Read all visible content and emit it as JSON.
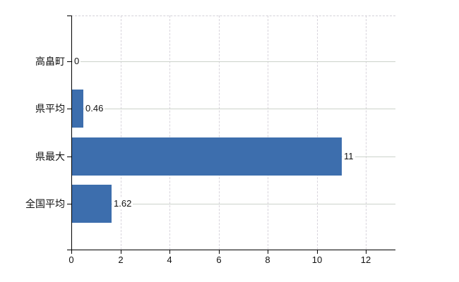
{
  "colors": {
    "bar": "#3d6ead",
    "axis": "#000000",
    "vertical_gridline": "#d8d4dc",
    "category_gridline": "#ccd3cb",
    "plot_top_border": "#d4d2d8",
    "text": "#111111"
  },
  "chart_data": {
    "type": "bar",
    "orientation": "horizontal",
    "categories": [
      "高畠町",
      "県平均",
      "県最大",
      "全国平均"
    ],
    "values": [
      0,
      0.46,
      11,
      1.62
    ],
    "value_labels": [
      "0",
      "0.46",
      "11",
      "1.62"
    ],
    "x_ticks": [
      0,
      2,
      4,
      6,
      8,
      10,
      12
    ],
    "x_tick_labels": [
      "0",
      "2",
      "4",
      "6",
      "8",
      "10",
      "12"
    ],
    "xlim": [
      0,
      13.2
    ],
    "grid": true,
    "legend": "none"
  }
}
